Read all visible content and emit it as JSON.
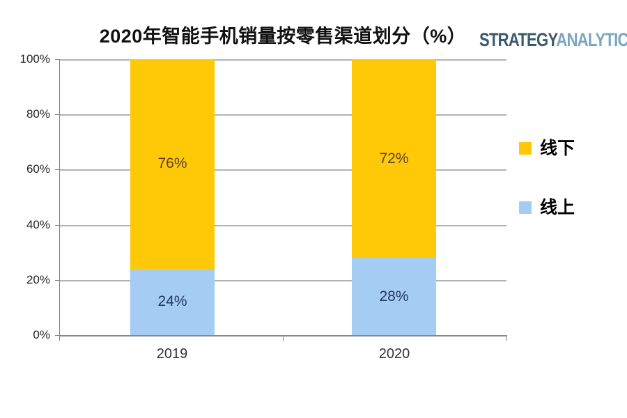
{
  "title": "2020年智能手机销量按零售渠道划分（%）",
  "logo": {
    "part1": "STRATEGY",
    "part2": "ANALYTICS",
    "part1_color": "#3B5A6A",
    "part2_color": "#7CA5C0"
  },
  "chart_data": {
    "type": "bar",
    "subtype": "stacked-100-percent",
    "title": "2020年智能手机销量按零售渠道划分（%）",
    "categories": [
      "2019",
      "2020"
    ],
    "series": [
      {
        "name": "线下",
        "color": "#FFC907",
        "label_color": "#5C4033",
        "values": [
          76,
          72
        ],
        "labels": [
          "76%",
          "72%"
        ]
      },
      {
        "name": "线上",
        "color": "#A5CCF3",
        "label_color": "#1F3864",
        "values": [
          24,
          28
        ],
        "labels": [
          "24%",
          "28%"
        ]
      }
    ],
    "xlabel": "",
    "ylabel": "",
    "ylim": [
      0,
      100
    ],
    "y_ticks": [
      "100%",
      "80%",
      "60%",
      "40%",
      "20%",
      "0%"
    ],
    "grid": true,
    "legend_position": "right"
  }
}
